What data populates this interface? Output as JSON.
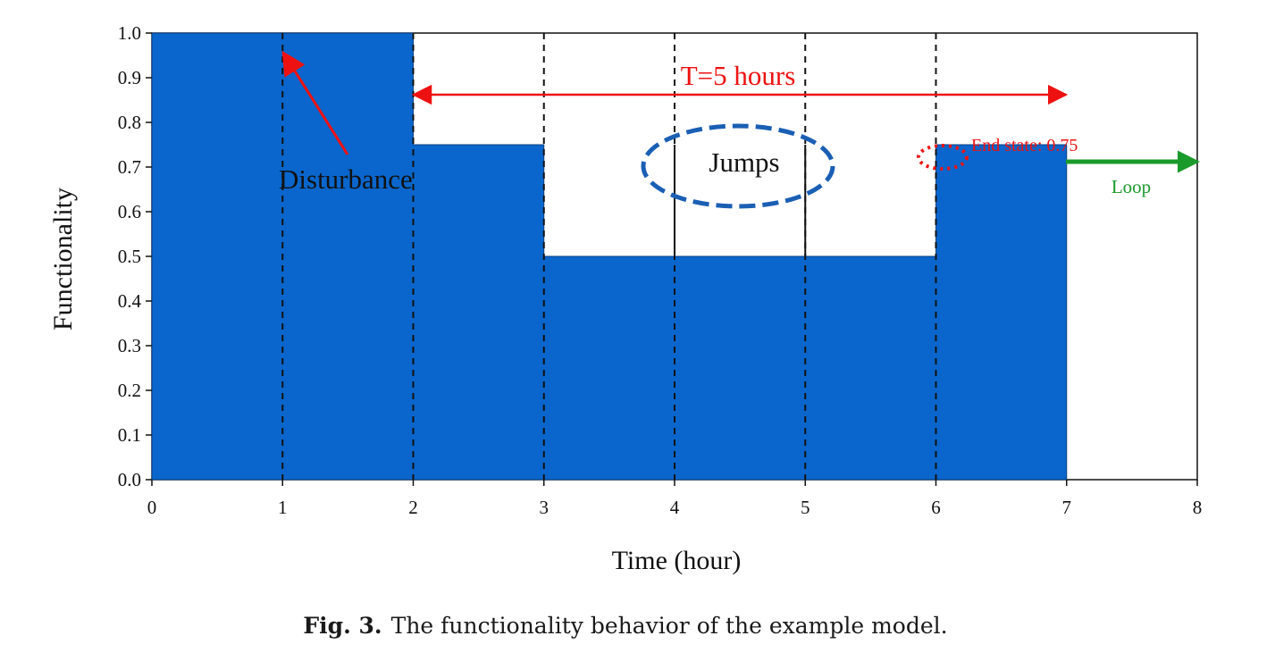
{
  "chart_data": {
    "type": "area",
    "xlabel": "Time (hour)",
    "ylabel": "Functionality",
    "xlim": [
      0,
      8
    ],
    "ylim": [
      0,
      1.0
    ],
    "x_ticks": [
      "0",
      "1",
      "2",
      "3",
      "4",
      "5",
      "6",
      "7",
      "8"
    ],
    "y_ticks": [
      "0.0",
      "0.1",
      "0.2",
      "0.3",
      "0.4",
      "0.5",
      "0.6",
      "0.7",
      "0.8",
      "0.9",
      "1.0"
    ],
    "grid": false,
    "series": [
      {
        "color": "#0a66cc",
        "x": [
          0,
          2,
          2,
          3,
          3,
          6,
          6,
          7
        ],
        "y": [
          1.0,
          1.0,
          0.75,
          0.75,
          0.5,
          0.5,
          0.75,
          0.75
        ]
      }
    ],
    "jump_spikes": [
      {
        "x": 4,
        "y_from": 0.5,
        "y_to": 0.75
      },
      {
        "x": 5,
        "y_from": 0.5,
        "y_to": 0.75
      }
    ],
    "dashed_verticals": [
      1,
      2,
      3,
      4,
      5,
      6
    ],
    "annotations": {
      "period": {
        "text": "T=5 hours",
        "from_x": 2,
        "to_x": 7,
        "y": 0.9,
        "color": "#ee1111"
      },
      "disturbance": {
        "text": "Disturbance",
        "arrow_to": [
          1,
          1.0
        ],
        "color": "#ee1111"
      },
      "jumps": {
        "text": "Jumps",
        "color": "#1a5fb4"
      },
      "end_state": {
        "text": "End state: 0.75",
        "color": "#ee1111"
      },
      "loop": {
        "text": "Loop",
        "color": "#1a9a2a"
      }
    }
  },
  "caption": {
    "label": "Fig. 3.",
    "text": "The functionality behavior of the example model."
  }
}
